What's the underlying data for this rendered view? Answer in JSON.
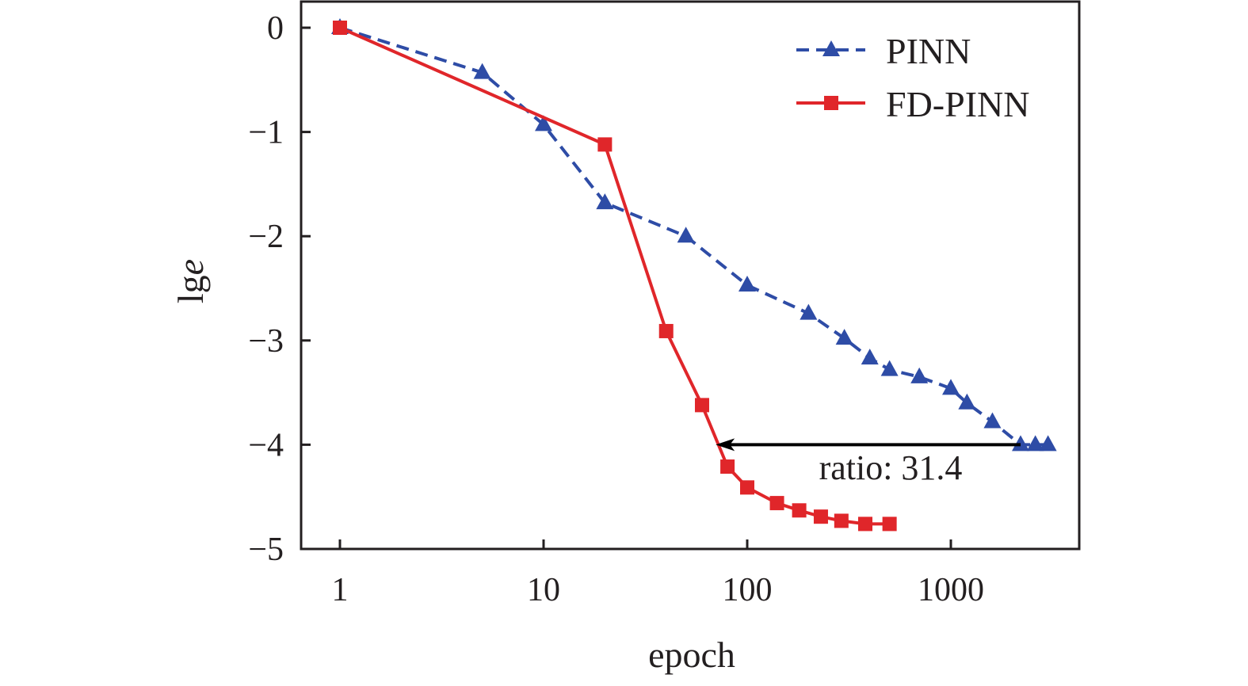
{
  "chart_data": {
    "type": "line",
    "xlabel": "epoch",
    "ylabel": "lge",
    "x_scale": "log",
    "xlim": [
      1,
      4000
    ],
    "ylim": [
      -5,
      0.25
    ],
    "x_ticks": [
      "1",
      "10",
      "100",
      "1000"
    ],
    "x_tick_values": [
      1,
      10,
      100,
      1000
    ],
    "y_ticks": [
      "0",
      "−1",
      "−2",
      "−3",
      "−4",
      "−5"
    ],
    "y_tick_values": [
      0,
      -1,
      -2,
      -3,
      -4,
      -5
    ],
    "grid": false,
    "legend_position": "top-right",
    "series": [
      {
        "name": "PINN",
        "color": "#2e4ca6",
        "line_style": "dashed",
        "marker": "triangle",
        "x": [
          1,
          5,
          10,
          20,
          50,
          100,
          200,
          300,
          400,
          500,
          700,
          1000,
          1200,
          1600,
          2200,
          2600,
          3000
        ],
        "y": [
          0,
          -0.43,
          -0.93,
          -1.68,
          -2.0,
          -2.47,
          -2.74,
          -2.98,
          -3.17,
          -3.28,
          -3.35,
          -3.46,
          -3.6,
          -3.78,
          -4.0,
          -4.0,
          -4.0
        ]
      },
      {
        "name": "FD-PINN",
        "color": "#e0262a",
        "line_style": "solid",
        "marker": "square",
        "x": [
          1,
          20,
          40,
          60,
          80,
          100,
          140,
          180,
          230,
          290,
          380,
          500
        ],
        "y": [
          0,
          -1.12,
          -2.91,
          -3.62,
          -4.21,
          -4.41,
          -4.56,
          -4.63,
          -4.69,
          -4.73,
          -4.76,
          -4.76
        ]
      }
    ],
    "annotations": [
      {
        "type": "arrow",
        "from": {
          "x": 2200,
          "y": -4.0
        },
        "to": {
          "x": 70,
          "y": -4.0
        },
        "text": "ratio: 31.4"
      }
    ]
  }
}
